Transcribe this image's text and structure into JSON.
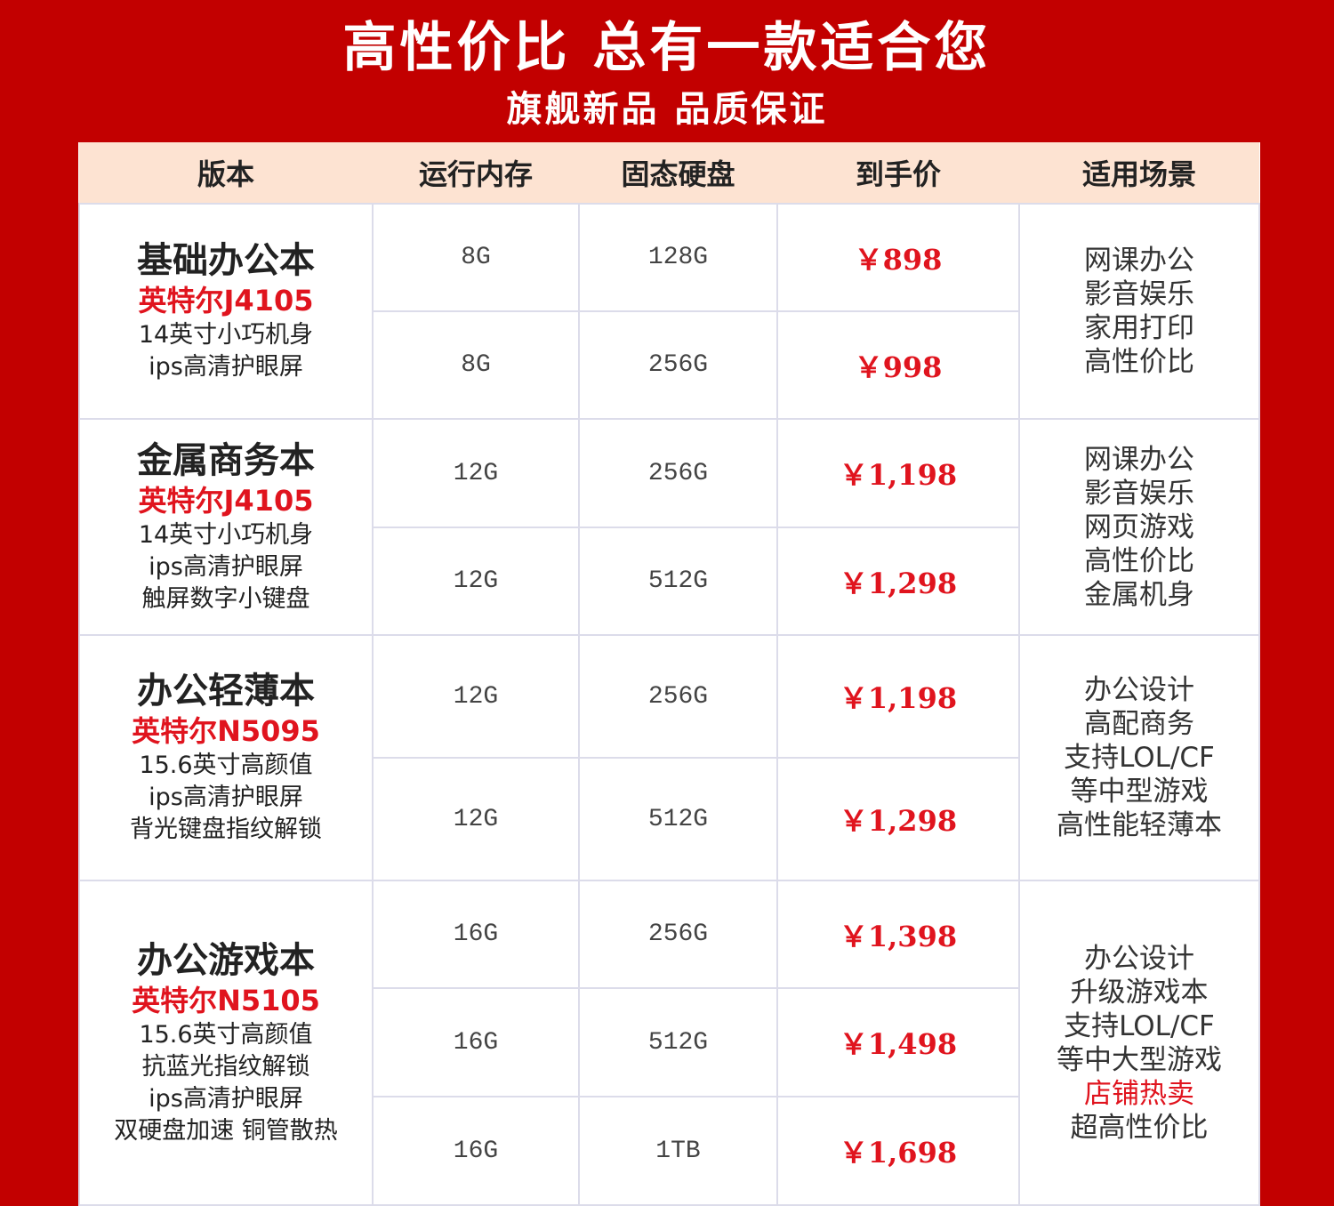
{
  "header": {
    "title": "高性价比  总有一款适合您",
    "subtitle": "旗舰新品  品质保证"
  },
  "colors": {
    "background": "#c20000",
    "header_row": "#fde3d2",
    "price": "#e0141e"
  },
  "table": {
    "columns": [
      "版本",
      "运行内存",
      "固态硬盘",
      "到手价",
      "适用场景"
    ],
    "groups": [
      {
        "name": "基础办公本",
        "cpu": "英特尔J4105",
        "features": [
          "14英寸小巧机身",
          "ips高清护眼屏"
        ],
        "rows": [
          {
            "ram": "8G",
            "ssd": "128G",
            "price": "￥898"
          },
          {
            "ram": "8G",
            "ssd": "256G",
            "price": "￥998"
          }
        ],
        "scenes": [
          "网课办公",
          "影音娱乐",
          "家用打印",
          "高性价比"
        ],
        "hot": []
      },
      {
        "name": "金属商务本",
        "cpu": "英特尔J4105",
        "features": [
          "14英寸小巧机身",
          "ips高清护眼屏",
          "触屏数字小键盘"
        ],
        "rows": [
          {
            "ram": "12G",
            "ssd": "256G",
            "price": "￥1,198"
          },
          {
            "ram": "12G",
            "ssd": "512G",
            "price": "￥1,298"
          }
        ],
        "scenes": [
          "网课办公",
          "影音娱乐",
          "网页游戏",
          "高性价比",
          "金属机身"
        ],
        "hot": []
      },
      {
        "name": "办公轻薄本",
        "cpu": "英特尔N5095",
        "features": [
          "15.6英寸高颜值",
          "ips高清护眼屏",
          "背光键盘指纹解锁"
        ],
        "rows": [
          {
            "ram": "12G",
            "ssd": "256G",
            "price": "￥1,198"
          },
          {
            "ram": "12G",
            "ssd": "512G",
            "price": "￥1,298"
          }
        ],
        "scenes": [
          "办公设计",
          "高配商务",
          "支持LOL/CF",
          "等中型游戏",
          "高性能轻薄本"
        ],
        "hot": []
      },
      {
        "name": "办公游戏本",
        "cpu": "英特尔N5105",
        "features": [
          "15.6英寸高颜值",
          "抗蓝光指纹解锁",
          "ips高清护眼屏",
          "双硬盘加速  铜管散热"
        ],
        "rows": [
          {
            "ram": "16G",
            "ssd": "256G",
            "price": "￥1,398"
          },
          {
            "ram": "16G",
            "ssd": "512G",
            "price": "￥1,498"
          },
          {
            "ram": "16G",
            "ssd": "1TB",
            "price": "￥1,698"
          }
        ],
        "scenes": [
          "办公设计",
          "升级游戏本",
          "支持LOL/CF",
          "等中大型游戏",
          "店铺热卖",
          "超高性价比"
        ],
        "hot": [
          4
        ]
      }
    ]
  }
}
